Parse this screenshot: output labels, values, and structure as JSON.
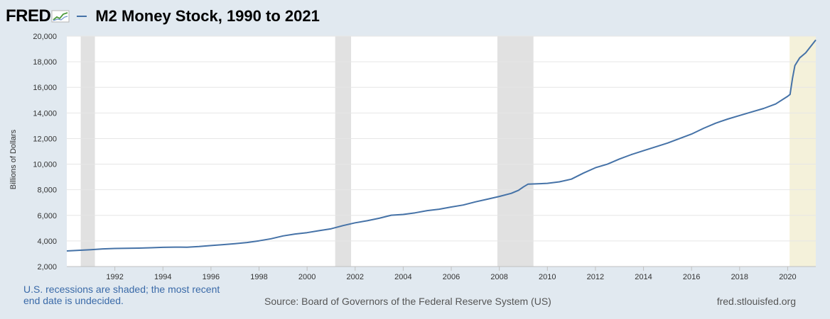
{
  "header": {
    "logo_text": "FRED",
    "title": "M2 Money Stock, 1990 to 2021"
  },
  "colors": {
    "series": "#4572a7",
    "recession": "#e1e1e1",
    "undecided": "#f4f1da",
    "grid": "#e6e6e6"
  },
  "chart_data": {
    "type": "line",
    "title": "M2 Money Stock, 1990 to 2021",
    "xlabel": "",
    "ylabel": "Billions of Dollars",
    "xlim": [
      1990.0,
      2021.17
    ],
    "ylim": [
      2000,
      20000
    ],
    "x_ticks": [
      "1992",
      "1994",
      "1996",
      "1998",
      "2000",
      "2002",
      "2004",
      "2006",
      "2008",
      "2010",
      "2012",
      "2014",
      "2016",
      "2018",
      "2020"
    ],
    "y_ticks": [
      "2,000",
      "4,000",
      "6,000",
      "8,000",
      "10,000",
      "12,000",
      "14,000",
      "16,000",
      "18,000",
      "20,000"
    ],
    "recessions": [
      [
        1990.58,
        1991.17
      ],
      [
        2001.17,
        2001.83
      ],
      [
        2007.92,
        2009.42
      ]
    ],
    "undecided_recession_start": 2020.08,
    "series": [
      {
        "values": [
          [
            1990.0,
            3220
          ],
          [
            1990.5,
            3270
          ],
          [
            1991.0,
            3320
          ],
          [
            1991.5,
            3380
          ],
          [
            1992.0,
            3410
          ],
          [
            1992.5,
            3430
          ],
          [
            1993.0,
            3440
          ],
          [
            1993.5,
            3470
          ],
          [
            1994.0,
            3500
          ],
          [
            1994.5,
            3520
          ],
          [
            1995.0,
            3510
          ],
          [
            1995.5,
            3560
          ],
          [
            1996.0,
            3640
          ],
          [
            1996.5,
            3710
          ],
          [
            1997.0,
            3790
          ],
          [
            1997.5,
            3880
          ],
          [
            1998.0,
            4010
          ],
          [
            1998.5,
            4170
          ],
          [
            1999.0,
            4390
          ],
          [
            1999.5,
            4540
          ],
          [
            2000.0,
            4650
          ],
          [
            2000.5,
            4800
          ],
          [
            2001.0,
            4950
          ],
          [
            2001.5,
            5200
          ],
          [
            2002.0,
            5420
          ],
          [
            2002.5,
            5580
          ],
          [
            2003.0,
            5770
          ],
          [
            2003.5,
            6010
          ],
          [
            2004.0,
            6070
          ],
          [
            2004.5,
            6200
          ],
          [
            2005.0,
            6370
          ],
          [
            2005.5,
            6480
          ],
          [
            2006.0,
            6650
          ],
          [
            2006.5,
            6810
          ],
          [
            2007.0,
            7050
          ],
          [
            2007.5,
            7260
          ],
          [
            2008.0,
            7480
          ],
          [
            2008.5,
            7720
          ],
          [
            2008.8,
            7960
          ],
          [
            2009.0,
            8220
          ],
          [
            2009.2,
            8440
          ],
          [
            2009.5,
            8460
          ],
          [
            2010.0,
            8500
          ],
          [
            2010.5,
            8620
          ],
          [
            2011.0,
            8830
          ],
          [
            2011.5,
            9300
          ],
          [
            2012.0,
            9720
          ],
          [
            2012.5,
            10000
          ],
          [
            2013.0,
            10400
          ],
          [
            2013.5,
            10750
          ],
          [
            2014.0,
            11050
          ],
          [
            2014.5,
            11350
          ],
          [
            2015.0,
            11650
          ],
          [
            2015.5,
            12000
          ],
          [
            2016.0,
            12350
          ],
          [
            2016.5,
            12800
          ],
          [
            2017.0,
            13200
          ],
          [
            2017.5,
            13520
          ],
          [
            2018.0,
            13800
          ],
          [
            2018.5,
            14080
          ],
          [
            2019.0,
            14350
          ],
          [
            2019.5,
            14700
          ],
          [
            2020.0,
            15300
          ],
          [
            2020.1,
            15450
          ],
          [
            2020.2,
            16700
          ],
          [
            2020.3,
            17700
          ],
          [
            2020.5,
            18300
          ],
          [
            2020.75,
            18700
          ],
          [
            2021.0,
            19300
          ],
          [
            2021.17,
            19700
          ]
        ]
      }
    ]
  },
  "footer": {
    "recession_note": "U.S. recessions are shaded; the most recent end date is undecided.",
    "source": "Source: Board of Governors of the Federal Reserve System (US)",
    "url": "fred.stlouisfed.org"
  }
}
